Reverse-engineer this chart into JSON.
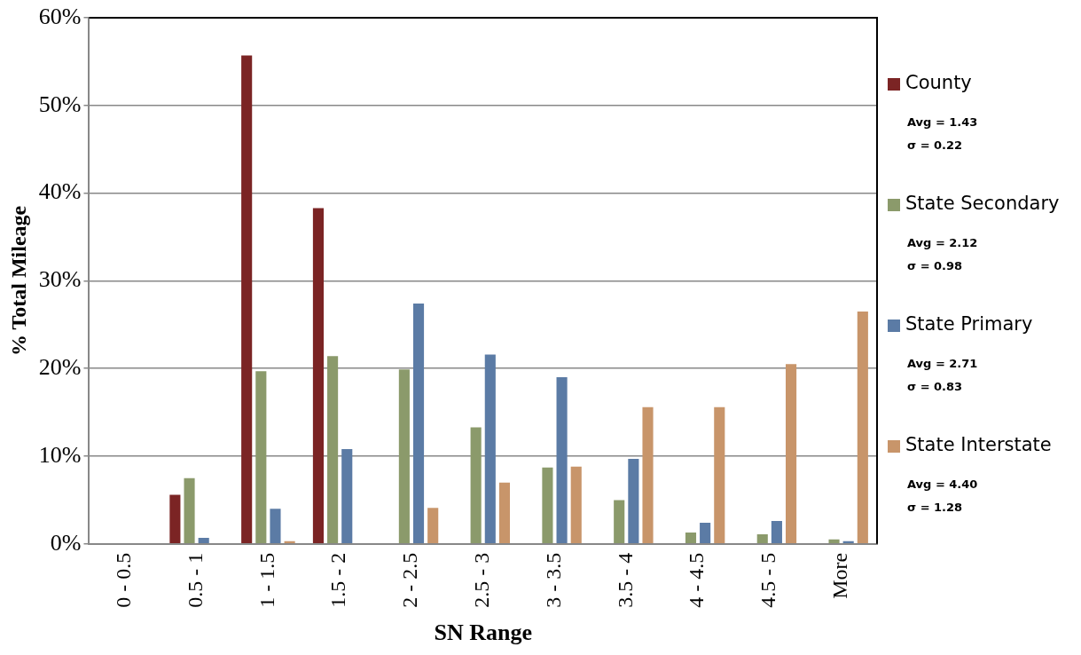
{
  "chart_data": {
    "type": "bar",
    "xlabel": "SN Range",
    "ylabel": "% Total Mileage",
    "categories": [
      "0 - 0.5",
      "0.5 - 1",
      "1 - 1.5",
      "1.5 - 2",
      "2 - 2.5",
      "2.5 - 3",
      "3 - 3.5",
      "3.5 - 4",
      "4 - 4.5",
      "4.5 - 5",
      "More"
    ],
    "series": [
      {
        "name": "County",
        "color": "#7b2424",
        "values": [
          0,
          5.6,
          55.7,
          38.3,
          0,
          0,
          0,
          0,
          0,
          0,
          0
        ]
      },
      {
        "name": "State Secondary",
        "color": "#8b9a6b",
        "values": [
          0,
          7.5,
          19.7,
          21.4,
          19.9,
          13.3,
          8.7,
          5,
          1.3,
          1.1,
          0.5
        ]
      },
      {
        "name": "State Primary",
        "color": "#5b7ba5",
        "values": [
          0,
          0.7,
          4,
          10.8,
          27.4,
          21.6,
          19,
          9.7,
          2.4,
          2.6,
          0.3
        ]
      },
      {
        "name": "State Interstate",
        "color": "#c8956a",
        "values": [
          0,
          0,
          0.3,
          0,
          4.1,
          7,
          8.8,
          15.6,
          15.6,
          20.5,
          26.5
        ]
      }
    ],
    "ylim": [
      0,
      60
    ],
    "yticks": [
      {
        "value": 0,
        "label": "0%"
      },
      {
        "value": 10,
        "label": "10%"
      },
      {
        "value": 20,
        "label": "20%"
      },
      {
        "value": 30,
        "label": "30%"
      },
      {
        "value": 40,
        "label": "40%"
      },
      {
        "value": 50,
        "label": "50%"
      },
      {
        "value": 60,
        "label": "60%"
      }
    ],
    "grid": "y",
    "legend": "right",
    "annotations": [
      "Avg = 1.43\nσ = 0.22",
      "Avg = 2.12\nσ = 0.98",
      "Avg = 2.71\nσ = 0.83",
      "Avg = 4.40\nσ = 1.28"
    ]
  }
}
